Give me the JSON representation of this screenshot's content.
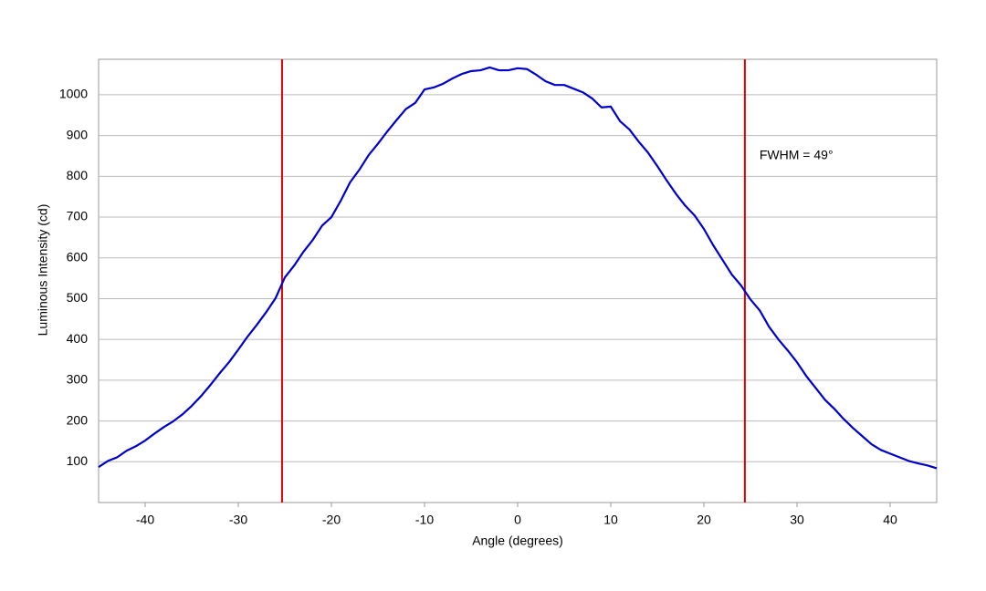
{
  "chart_data": {
    "type": "line",
    "x_label": "Angle (degrees)",
    "y_label": "Luminous Intensity (cd)",
    "annotation": "FWHM = 49°",
    "x": [
      -45,
      -44,
      -43,
      -42,
      -41,
      -40,
      -39,
      -38,
      -37,
      -36,
      -35,
      -34,
      -33,
      -32,
      -31,
      -30,
      -29,
      -28,
      -27,
      -26,
      -25,
      -24,
      -23,
      -22,
      -21,
      -20,
      -19,
      -18,
      -17,
      -16,
      -15,
      -14,
      -13,
      -12,
      -11,
      -10,
      -9,
      -8,
      -7,
      -6,
      -5,
      -4,
      -3,
      -2,
      -1,
      0,
      1,
      2,
      3,
      4,
      5,
      6,
      7,
      8,
      9,
      10,
      11,
      12,
      13,
      14,
      15,
      16,
      17,
      18,
      19,
      20,
      21,
      22,
      23,
      24,
      25,
      26,
      27,
      28,
      29,
      30,
      31,
      32,
      33,
      34,
      35,
      36,
      37,
      38,
      39,
      40,
      41,
      42,
      43,
      44,
      45
    ],
    "series": [
      {
        "name": "Luminous Intensity",
        "color": "#0000cc",
        "values": [
          87,
          102,
          111,
          127,
          138,
          152,
          169,
          185,
          199,
          216,
          237,
          261,
          288,
          317,
          344,
          375,
          407,
          436,
          467,
          501,
          552,
          581,
          615,
          644,
          679,
          700,
          740,
          785,
          816,
          852,
          880,
          910,
          938,
          965,
          980,
          1013,
          1018,
          1027,
          1040,
          1051,
          1058,
          1060,
          1067,
          1060,
          1060,
          1065,
          1063,
          1049,
          1033,
          1024,
          1024,
          1015,
          1006,
          991,
          969,
          971,
          935,
          915,
          885,
          858,
          825,
          790,
          757,
          728,
          704,
          671,
          631,
          595,
          559,
          532,
          498,
          471,
          431,
          400,
          373,
          344,
          310,
          281,
          252,
          230,
          205,
          183,
          163,
          143,
          129,
          120,
          111,
          102,
          96,
          91,
          84
        ]
      }
    ],
    "vlines": [
      -25.3,
      24.4
    ],
    "vline_color": "#dd0000",
    "xlim": [
      -45,
      45
    ],
    "ylim": [
      0,
      1087
    ],
    "xticks": [
      -40,
      -30,
      -20,
      -10,
      0,
      10,
      20,
      30,
      40
    ],
    "yticks": [
      100,
      200,
      300,
      400,
      500,
      600,
      700,
      800,
      900,
      1000
    ],
    "grid": true
  }
}
